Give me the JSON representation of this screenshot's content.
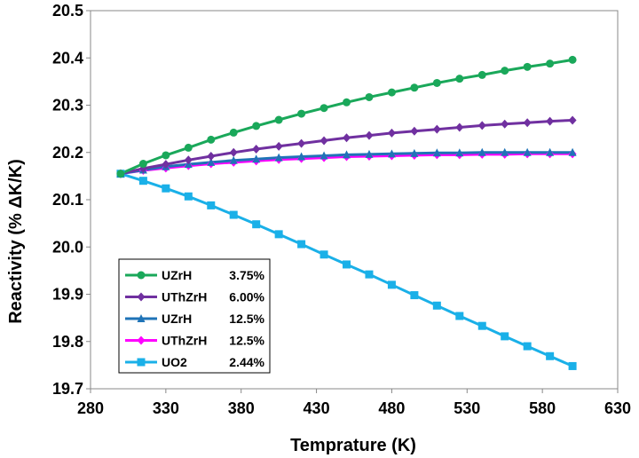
{
  "chart_data": {
    "type": "line",
    "title": "",
    "xlabel": "Temprature (K)",
    "ylabel": "Reactivity (% ΔK/K)",
    "xlim": [
      280,
      630
    ],
    "ylim": [
      19.7,
      20.5
    ],
    "xticks": [
      "280",
      "330",
      "380",
      "430",
      "480",
      "530",
      "580",
      "630"
    ],
    "yticks": [
      "19.7",
      "19.8",
      "19.9",
      "20.0",
      "20.1",
      "20.2",
      "20.3",
      "20.4",
      "20.5"
    ],
    "grid": false,
    "legend_position": "bottom-left",
    "x": [
      300,
      315,
      330,
      345,
      360,
      375,
      390,
      405,
      420,
      435,
      450,
      465,
      480,
      495,
      510,
      525,
      540,
      555,
      570,
      585,
      600
    ],
    "series": [
      {
        "name": "UZrH",
        "extra": "3.75%",
        "color": "#1aa85a",
        "marker": "circle",
        "values": [
          20.155,
          20.176,
          20.194,
          20.21,
          20.227,
          20.242,
          20.256,
          20.269,
          20.282,
          20.294,
          20.306,
          20.317,
          20.327,
          20.337,
          20.347,
          20.356,
          20.364,
          20.373,
          20.381,
          20.388,
          20.396
        ]
      },
      {
        "name": "UThZrH",
        "extra": "6.00%",
        "color": "#7030a0",
        "marker": "diamond",
        "values": [
          20.155,
          20.166,
          20.175,
          20.184,
          20.192,
          20.2,
          20.207,
          20.213,
          20.219,
          20.225,
          20.231,
          20.236,
          20.241,
          20.245,
          20.249,
          20.253,
          20.257,
          20.26,
          20.263,
          20.266,
          20.268
        ]
      },
      {
        "name": "UZrH",
        "extra": "12.5%",
        "color": "#1f73b7",
        "marker": "triangle",
        "values": [
          20.155,
          20.163,
          20.17,
          20.175,
          20.179,
          20.183,
          20.186,
          20.189,
          20.191,
          20.193,
          20.195,
          20.196,
          20.197,
          20.198,
          20.199,
          20.199,
          20.2,
          20.2,
          20.2,
          20.2,
          20.2
        ]
      },
      {
        "name": "UThZrH",
        "extra": "12.5%",
        "color": "#ff00ff",
        "marker": "diamond",
        "values": [
          20.155,
          20.162,
          20.167,
          20.172,
          20.176,
          20.179,
          20.182,
          20.185,
          20.187,
          20.189,
          20.191,
          20.192,
          20.193,
          20.194,
          20.195,
          20.195,
          20.196,
          20.196,
          20.197,
          20.197,
          20.197
        ]
      },
      {
        "name": "UO2",
        "extra": "2.44%",
        "color": "#1ab0e8",
        "marker": "square",
        "values": [
          20.155,
          20.14,
          20.124,
          20.107,
          20.088,
          20.068,
          20.048,
          20.027,
          20.006,
          19.984,
          19.963,
          19.942,
          19.92,
          19.898,
          19.876,
          19.854,
          19.833,
          19.811,
          19.79,
          19.769,
          19.748
        ]
      }
    ]
  }
}
